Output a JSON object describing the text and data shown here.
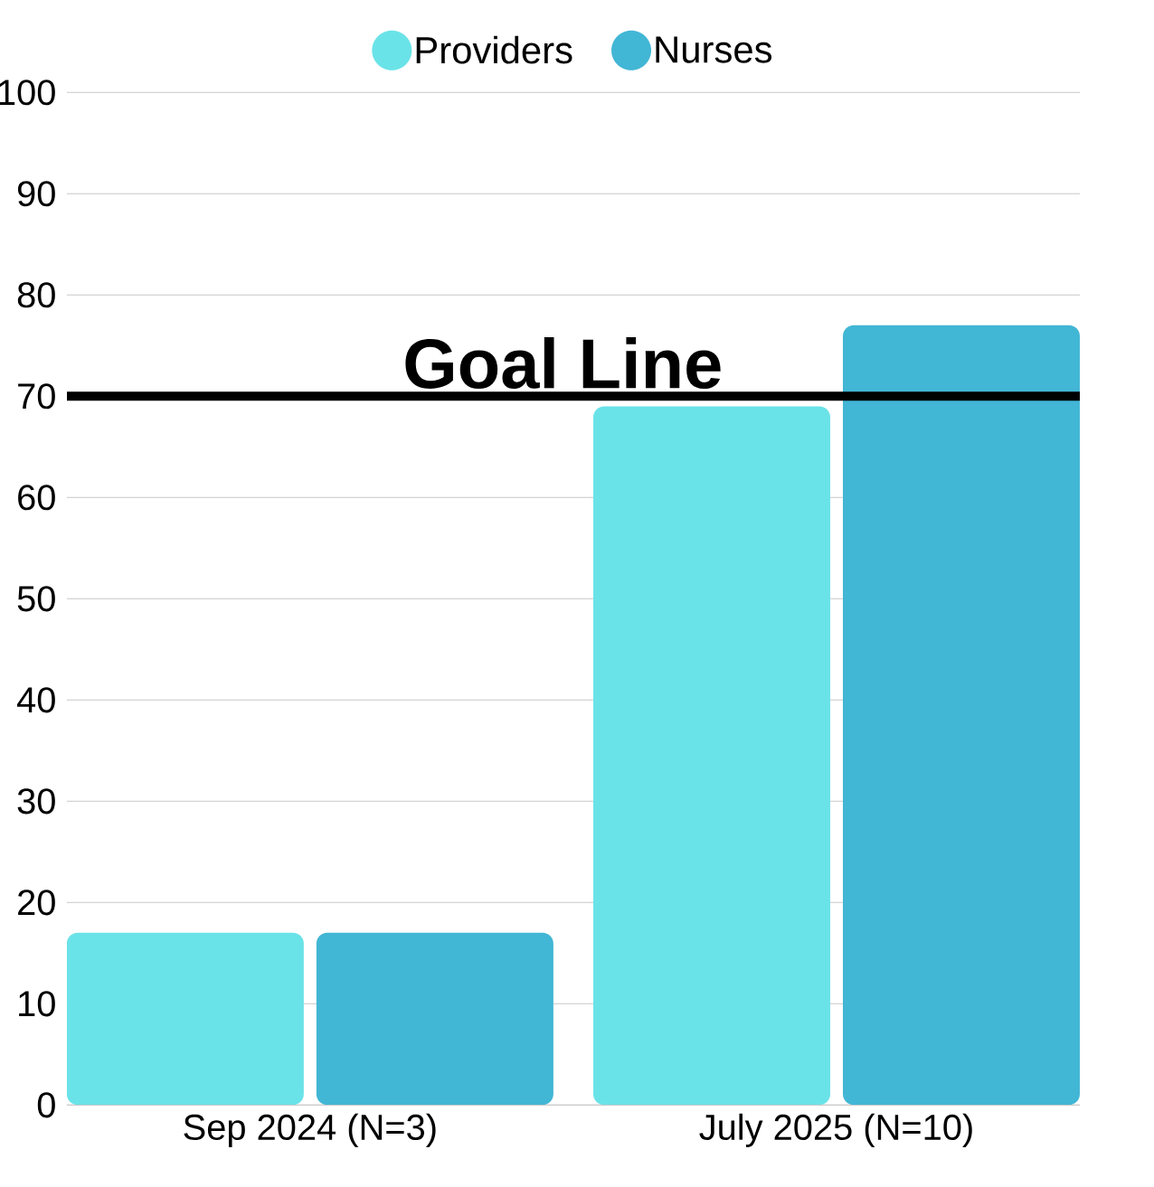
{
  "chart_data": {
    "type": "bar",
    "categories": [
      "Sep 2024 (N=3)",
      "July 2025 (N=10)"
    ],
    "series": [
      {
        "name": "Providers",
        "color": "#6ae3e8",
        "values": [
          17,
          69
        ]
      },
      {
        "name": "Nurses",
        "color": "#42b6d5",
        "values": [
          17,
          77
        ]
      }
    ],
    "ylim": [
      0,
      100
    ],
    "yticks": [
      0,
      10,
      20,
      30,
      40,
      50,
      60,
      70,
      80,
      90,
      100
    ],
    "grid": "y",
    "legend": "top",
    "marker": "circle",
    "ref_lines": [
      {
        "axis": "y",
        "value": 70,
        "label": "Goal Line",
        "color": "#000000"
      }
    ]
  }
}
